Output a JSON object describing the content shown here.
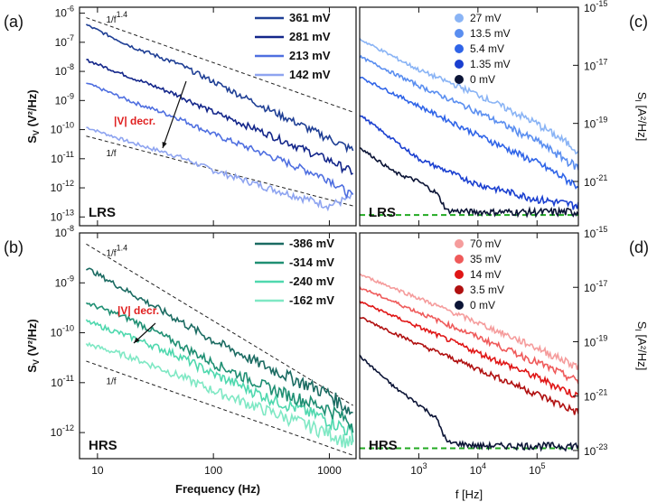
{
  "colors": {
    "panel_a": [
      "#1f3f95",
      "#13268a",
      "#4f6fe0",
      "#8ea4f0"
    ],
    "panel_b": [
      "#1b6b62",
      "#1f8f73",
      "#4fd8ae",
      "#7fe8c4"
    ],
    "panel_c": [
      "#8ab4f5",
      "#5a8ef0",
      "#2f64e8",
      "#1a3fd0",
      "#0b1436"
    ],
    "panel_d": [
      "#f59c9c",
      "#ef5a5a",
      "#e01616",
      "#b01010",
      "#0b1436"
    ],
    "annotation_red": "#e02020",
    "noise_floor": "#22aa22"
  },
  "chart_data": [
    {
      "panel": "(a)",
      "type": "line",
      "state_label": "LRS",
      "xlabel": "Frequency (Hz)",
      "ylabel": "SV (V²/Hz)",
      "x_scale": "log",
      "y_scale": "log",
      "xlim": [
        7,
        1700
      ],
      "ylim": [
        5e-14,
        1.6e-06
      ],
      "x_ticks": [
        10,
        100,
        1000
      ],
      "x_tick_labels": [
        "10",
        "100",
        "1000"
      ],
      "y_ticks": [
        1e-13,
        1e-12,
        1e-11,
        1e-10,
        1e-09,
        1e-08,
        1e-07,
        1e-06
      ],
      "y_tick_labels": [
        "10^-13",
        "10^-12",
        "10^-11",
        "10^-10",
        "10^-9",
        "10^-8",
        "10^-7",
        "10^-6"
      ],
      "legend_position": "top-right",
      "series": [
        {
          "name": "361 mV",
          "x": [
            8,
            20,
            50,
            100,
            300,
            1000,
            1600
          ],
          "y": [
            4e-07,
            7e-08,
            1.8e-08,
            4.5e-09,
            5e-10,
            5e-11,
            2e-11
          ]
        },
        {
          "name": "281 mV",
          "x": [
            8,
            20,
            50,
            100,
            300,
            1000,
            1600
          ],
          "y": [
            2.5e-08,
            6e-09,
            1.5e-09,
            4e-10,
            7e-11,
            9e-12,
            3.5e-12
          ]
        },
        {
          "name": "213 mV",
          "x": [
            8,
            20,
            50,
            100,
            300,
            1000,
            1600
          ],
          "y": [
            4e-09,
            9e-10,
            2.5e-10,
            7e-11,
            1.3e-11,
            2e-12,
            5e-13
          ]
        },
        {
          "name": "142 mV",
          "x": [
            8,
            20,
            50,
            100,
            300,
            1000,
            1600
          ],
          "y": [
            1.2e-10,
            3.5e-11,
            1.2e-11,
            4e-12,
            1e-12,
            2.5e-13,
            5e-13
          ]
        }
      ],
      "guides": [
        {
          "label": "1/f^1.4",
          "x": [
            8,
            1600
          ],
          "y": [
            7e-07,
            4e-10
          ]
        },
        {
          "label": "1/f",
          "x": [
            8,
            1600
          ],
          "y": [
            6e-11,
            2.4e-13
          ]
        }
      ],
      "annotation": "|V| decr."
    },
    {
      "panel": "(b)",
      "type": "line",
      "state_label": "HRS",
      "xlabel": "Frequency (Hz)",
      "ylabel": "SV (V²/Hz)",
      "x_scale": "log",
      "y_scale": "log",
      "xlim": [
        7,
        1700
      ],
      "ylim": [
        3e-13,
        1e-08
      ],
      "x_ticks": [
        10,
        100,
        1000
      ],
      "x_tick_labels": [
        "10",
        "100",
        "1000"
      ],
      "y_ticks": [
        1e-12,
        1e-11,
        1e-10,
        1e-09,
        1e-08
      ],
      "y_tick_labels": [
        "10^-12",
        "10^-11",
        "10^-10",
        "10^-9",
        "10^-8"
      ],
      "legend_position": "top-right",
      "series": [
        {
          "name": "-386 mV",
          "x": [
            8,
            20,
            50,
            100,
            300,
            1000,
            1600
          ],
          "y": [
            2e-09,
            6e-10,
            1.8e-10,
            7e-11,
            2e-11,
            6e-12,
            2.5e-12
          ]
        },
        {
          "name": "-314 mV",
          "x": [
            8,
            20,
            50,
            100,
            300,
            1000,
            1600
          ],
          "y": [
            4e-10,
            1.8e-10,
            6e-11,
            2.5e-11,
            8e-12,
            3e-12,
            1.5e-12
          ]
        },
        {
          "name": "-240 mV",
          "x": [
            8,
            20,
            50,
            100,
            300,
            1000,
            1600
          ],
          "y": [
            1.7e-10,
            8e-11,
            3.5e-11,
            1.5e-11,
            5e-12,
            1.8e-12,
            1e-12
          ]
        },
        {
          "name": "-162 mV",
          "x": [
            8,
            20,
            50,
            100,
            300,
            1000,
            1600
          ],
          "y": [
            6e-11,
            3.2e-11,
            1.4e-11,
            7e-12,
            2.7e-12,
            1e-12,
            6e-13
          ]
        }
      ],
      "guides": [
        {
          "label": "1/f^1.4",
          "x": [
            8,
            1600
          ],
          "y": [
            6e-09,
            3.5e-12
          ]
        },
        {
          "label": "1/f",
          "x": [
            8,
            1600
          ],
          "y": [
            2.7e-11,
            3.5e-13
          ]
        }
      ],
      "annotation": "|V| decr."
    },
    {
      "panel": "(c)",
      "type": "line",
      "state_label": "LRS",
      "xlabel": "f [Hz]",
      "ylabel": "SI [A²/Hz]",
      "x_scale": "log",
      "y_scale": "log",
      "xlim": [
        100,
        500000
      ],
      "ylim": [
        3e-23,
        1e-15
      ],
      "x_ticks": [
        1000,
        10000,
        100000
      ],
      "x_tick_labels": [
        "10^3",
        "10^4",
        "10^5"
      ],
      "y_ticks": [
        1e-15,
        1e-17,
        1e-19,
        1e-21
      ],
      "y_tick_labels": [
        "10^-15",
        "10^-17",
        "10^-19",
        "10^-21"
      ],
      "legend_position": "top",
      "series": [
        {
          "name": "27 mV",
          "x": [
            100,
            1000,
            10000,
            100000,
            500000
          ],
          "y": [
            8e-17,
            7e-18,
            1e-18,
            1e-19,
            1.2e-20
          ]
        },
        {
          "name": "13.5 mV",
          "x": [
            100,
            1000,
            10000,
            100000,
            500000
          ],
          "y": [
            2e-17,
            2e-18,
            2.5e-19,
            2.5e-20,
            3e-21
          ]
        },
        {
          "name": "5.4 mV",
          "x": [
            100,
            1000,
            10000,
            100000,
            500000
          ],
          "y": [
            4e-18,
            4e-19,
            4e-20,
            4.5e-21,
            7e-22
          ]
        },
        {
          "name": "1.35 mV",
          "x": [
            100,
            1000,
            10000,
            100000,
            500000
          ],
          "y": [
            2e-19,
            6e-21,
            8e-22,
            2.5e-22,
            1.5e-22
          ]
        },
        {
          "name": "0 mV",
          "x": [
            100,
            400,
            1000,
            2000,
            3000,
            10000,
            100000,
            500000
          ],
          "y": [
            1.5e-20,
            2e-21,
            1e-21,
            4e-22,
            1e-22,
            9e-23,
            9e-23,
            9e-23
          ]
        }
      ],
      "noise_floor": 7e-23
    },
    {
      "panel": "(d)",
      "type": "line",
      "state_label": "HRS",
      "xlabel": "f [Hz]",
      "ylabel": "SI [A²/Hz]",
      "x_scale": "log",
      "y_scale": "log",
      "xlim": [
        100,
        500000
      ],
      "ylim": [
        5e-24,
        1e-15
      ],
      "x_ticks": [
        1000,
        10000,
        100000
      ],
      "x_tick_labels": [
        "10^3",
        "10^4",
        "10^5"
      ],
      "y_ticks": [
        1e-15,
        1e-17,
        1e-19,
        1e-21,
        1e-23
      ],
      "y_tick_labels": [
        "10^-15",
        "10^-17",
        "10^-19",
        "10^-21",
        "10^-23"
      ],
      "legend_position": "top",
      "series": [
        {
          "name": "70 mV",
          "x": [
            100,
            1000,
            10000,
            100000,
            500000
          ],
          "y": [
            3e-17,
            4e-18,
            5e-19,
            6e-20,
            1.2e-20
          ]
        },
        {
          "name": "35 mV",
          "x": [
            100,
            1000,
            10000,
            100000,
            500000
          ],
          "y": [
            1e-17,
            1.2e-18,
            1.5e-19,
            1.8e-20,
            3.5e-21
          ]
        },
        {
          "name": "14 mV",
          "x": [
            100,
            1000,
            10000,
            100000,
            500000
          ],
          "y": [
            3e-18,
            3.5e-19,
            4e-20,
            5e-21,
            1e-21
          ]
        },
        {
          "name": "3.5 mV",
          "x": [
            100,
            1000,
            10000,
            100000,
            500000
          ],
          "y": [
            8e-19,
            8e-20,
            1e-20,
            1.2e-21,
            2.5e-22
          ]
        },
        {
          "name": "0 mV",
          "x": [
            100,
            400,
            1000,
            2000,
            3000,
            10000,
            100000,
            500000
          ],
          "y": [
            3e-20,
            2e-21,
            5e-22,
            1.5e-22,
            2e-23,
            1.5e-23,
            1.5e-23,
            1.5e-23
          ]
        }
      ],
      "noise_floor": 1.2e-23
    }
  ]
}
